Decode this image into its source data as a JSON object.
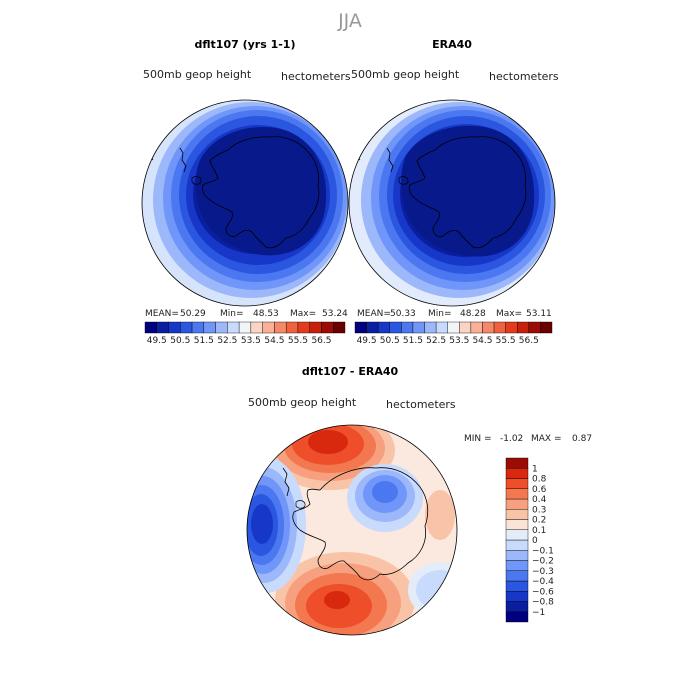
{
  "page_title": "JJA",
  "chart_data": [
    {
      "type": "heatmap",
      "projection": "south-polar-stereographic",
      "title": "dflt107 (yrs 1-1)",
      "variable_label": "500mb geop height",
      "units_label": "hectometers",
      "stats": {
        "mean_label": "MEAN=",
        "mean": "50.29",
        "min_label": "Min=",
        "min": "48.53",
        "max_label": "Max=",
        "max": "53.24"
      },
      "colorbar": {
        "orientation": "horizontal",
        "colors": [
          "#00007f",
          "#0a1ea0",
          "#1637c8",
          "#2a56e0",
          "#4b78f0",
          "#6f96f8",
          "#9cb8fb",
          "#c9dbfd",
          "#f2f5f8",
          "#fbd5c4",
          "#f9b097",
          "#f58868",
          "#f0623f",
          "#e33c1c",
          "#c71e0d",
          "#9a0c05",
          "#6a0000"
        ],
        "tick_labels": [
          "49.5",
          "50.5",
          "51.5",
          "52.5",
          "53.5",
          "54.5",
          "55.5",
          "56.5"
        ]
      }
    },
    {
      "type": "heatmap",
      "projection": "south-polar-stereographic",
      "title": "ERA40",
      "variable_label": "500mb geop height",
      "units_label": "hectometers",
      "stats": {
        "mean_label": "MEAN=",
        "mean": "50.33",
        "min_label": "Min=",
        "min": "48.28",
        "max_label": "Max=",
        "max": "53.11"
      },
      "colorbar": {
        "orientation": "horizontal",
        "colors": [
          "#00007f",
          "#0a1ea0",
          "#1637c8",
          "#2a56e0",
          "#4b78f0",
          "#6f96f8",
          "#9cb8fb",
          "#c9dbfd",
          "#f2f5f8",
          "#fbd5c4",
          "#f9b097",
          "#f58868",
          "#f0623f",
          "#e33c1c",
          "#c71e0d",
          "#9a0c05",
          "#6a0000"
        ],
        "tick_labels": [
          "49.5",
          "50.5",
          "51.5",
          "52.5",
          "53.5",
          "54.5",
          "55.5",
          "56.5"
        ]
      }
    },
    {
      "type": "heatmap",
      "projection": "south-polar-stereographic",
      "title": "dflt107 - ERA40",
      "variable_label": "500mb geop height",
      "units_label": "hectometers",
      "stats": {
        "min_label": "MIN =",
        "min": "-1.02",
        "max_label": "MAX =",
        "max": "0.87"
      },
      "colorbar": {
        "orientation": "vertical",
        "colors": [
          "#00007f",
          "#0a1ea0",
          "#1637c8",
          "#2a56e0",
          "#4b78f0",
          "#6f96f8",
          "#9cb8fb",
          "#c9dbfd",
          "#e3ecf9",
          "#fbe4d6",
          "#f9c3a7",
          "#f7a07f",
          "#f3784f",
          "#ee4e2a",
          "#d8280e",
          "#9a0c05"
        ],
        "tick_labels": [
          "1",
          "0.8",
          "0.6",
          "0.4",
          "0.3",
          "0.2",
          "0.1",
          "0",
          "-0.1",
          "-0.2",
          "-0.3",
          "-0.4",
          "-0.6",
          "-0.8",
          "-1"
        ]
      }
    }
  ]
}
